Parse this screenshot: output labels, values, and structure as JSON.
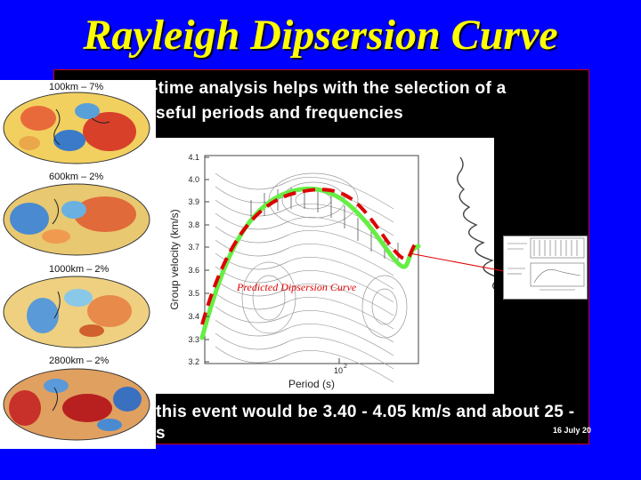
{
  "title": "Rayleigh Dipsersion Curve",
  "panel": {
    "line1": "-time analysis helps with the selection of a",
    "line2": "seful periods and frequencies",
    "line3": "this event would be 3.40 - 4.05 km/s and about 25 -",
    "line4": "s",
    "date": "16 July 20"
  },
  "maps": {
    "labels": [
      "100km – 7%",
      "600km – 2%",
      "1000km – 2%",
      "2800km – 2%"
    ]
  },
  "plot": {
    "annotation": "Predicted Dipsersion Curve",
    "ylabel": "Group velocity (km/s)",
    "xlabel": "Period (s)",
    "xtick": "10",
    "xtick_exp": "2",
    "yticks": [
      "4.1",
      "4.0",
      "3.9",
      "3.8",
      "3.7",
      "3.6",
      "3.5",
      "3.4",
      "3.3",
      "3.2"
    ]
  },
  "colors": {
    "background": "#0000ff",
    "title": "#ffff00",
    "predicted_curve": "#dd0000",
    "measured_curve": "#66ee44"
  }
}
